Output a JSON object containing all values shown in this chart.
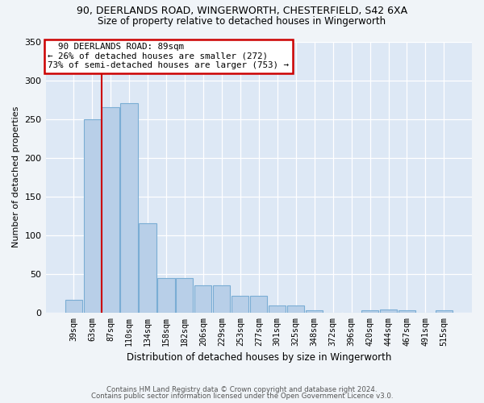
{
  "title1": "90, DEERLANDS ROAD, WINGERWORTH, CHESTERFIELD, S42 6XA",
  "title2": "Size of property relative to detached houses in Wingerworth",
  "xlabel": "Distribution of detached houses by size in Wingerworth",
  "ylabel": "Number of detached properties",
  "bar_color": "#b8cfe8",
  "bar_edge_color": "#7aadd4",
  "bg_color": "#dde8f5",
  "grid_color": "#ffffff",
  "categories": [
    "39sqm",
    "63sqm",
    "87sqm",
    "110sqm",
    "134sqm",
    "158sqm",
    "182sqm",
    "206sqm",
    "229sqm",
    "253sqm",
    "277sqm",
    "301sqm",
    "325sqm",
    "348sqm",
    "372sqm",
    "396sqm",
    "420sqm",
    "444sqm",
    "467sqm",
    "491sqm",
    "515sqm"
  ],
  "values": [
    16,
    250,
    265,
    270,
    115,
    45,
    45,
    35,
    35,
    22,
    22,
    9,
    9,
    3,
    0,
    0,
    3,
    4,
    3,
    0,
    3
  ],
  "ylim": [
    0,
    350
  ],
  "yticks": [
    0,
    50,
    100,
    150,
    200,
    250,
    300,
    350
  ],
  "property_line_x": 1.5,
  "property_size": "89sqm",
  "property_name": "90 DEERLANDS ROAD",
  "pct_smaller": 26,
  "n_smaller": 272,
  "pct_larger_semi": 73,
  "n_larger_semi": 753,
  "annotation_box_color": "#ffffff",
  "annotation_border_color": "#cc0000",
  "vline_color": "#cc0000",
  "footer1": "Contains HM Land Registry data © Crown copyright and database right 2024.",
  "footer2": "Contains public sector information licensed under the Open Government Licence v3.0.",
  "fig_width": 6.0,
  "fig_height": 5.0
}
